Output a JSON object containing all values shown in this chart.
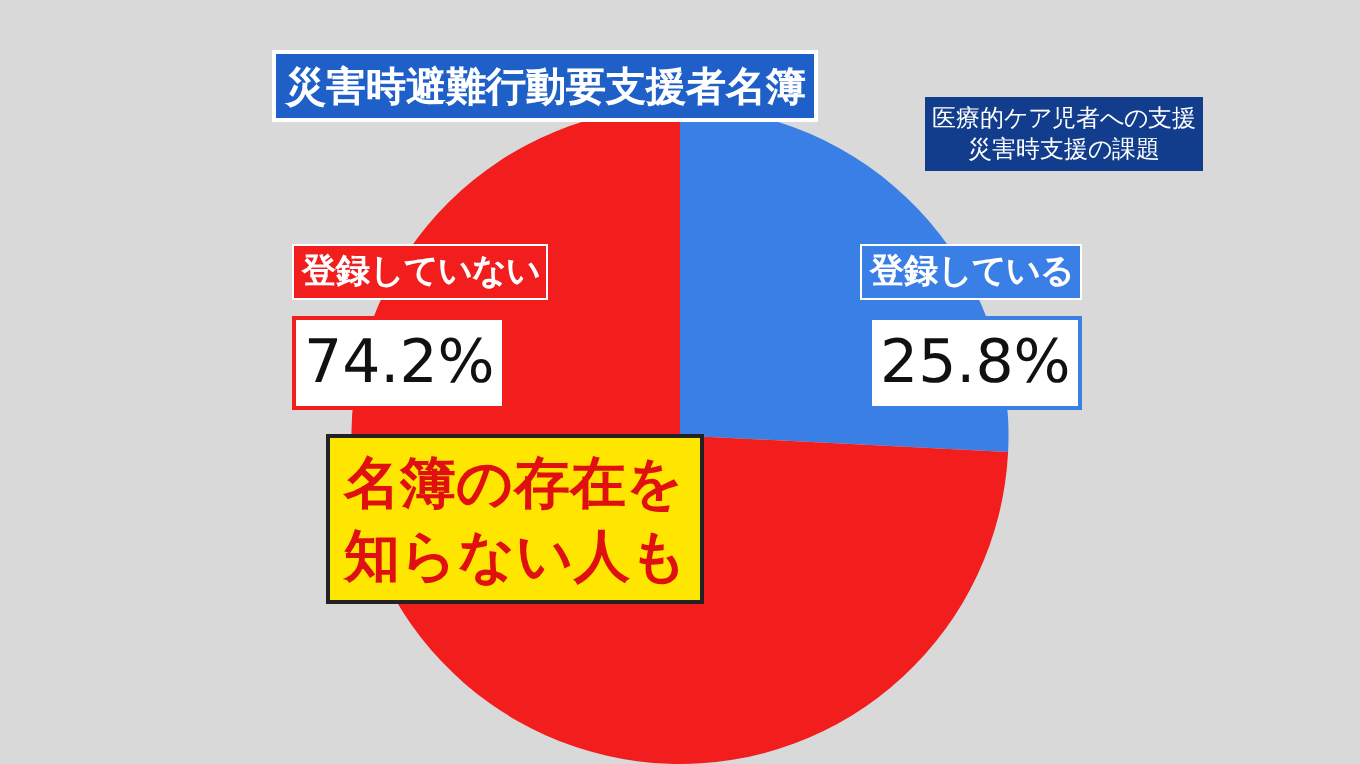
{
  "chart_data": {
    "type": "pie",
    "title": "災害時避難行動要支援者名簿",
    "subtitle": "医療的ケア児者への支援災害時支援の課題",
    "categories": [
      "登録している",
      "登録していない"
    ],
    "values": [
      25.8,
      74.2
    ],
    "value_labels": [
      "25.8%",
      "74.2%"
    ],
    "colors": [
      "#3a7fe6",
      "#f21d1d"
    ],
    "annotations": [
      "名簿の存在を知らない人も"
    ],
    "legend": false
  }
}
